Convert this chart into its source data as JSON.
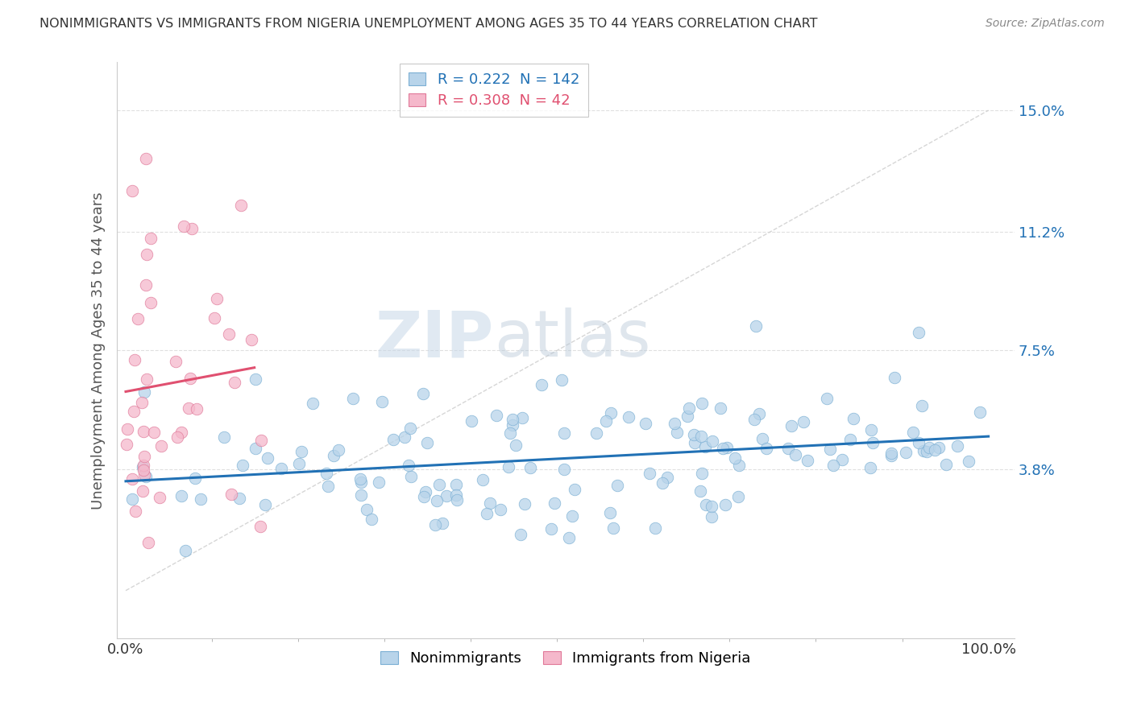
{
  "title": "NONIMMIGRANTS VS IMMIGRANTS FROM NIGERIA UNEMPLOYMENT AMONG AGES 35 TO 44 YEARS CORRELATION CHART",
  "source": "Source: ZipAtlas.com",
  "ylabel": "Unemployment Among Ages 35 to 44 years",
  "yticks": [
    3.8,
    7.5,
    11.2,
    15.0
  ],
  "ytick_labels": [
    "3.8%",
    "7.5%",
    "11.2%",
    "15.0%"
  ],
  "xtick_labels": [
    "0.0%",
    "100.0%"
  ],
  "blue_color": "#b8d4ea",
  "blue_edge_color": "#7bafd4",
  "pink_color": "#f5b8cb",
  "pink_edge_color": "#e07898",
  "blue_line_color": "#2171b5",
  "pink_line_color": "#e05070",
  "ref_line_color": "#cccccc",
  "grid_color": "#dddddd",
  "legend_blue_text_color": "#2171b5",
  "legend_pink_text_color": "#e05070",
  "R_blue": 0.222,
  "N_blue": 142,
  "R_pink": 0.308,
  "N_pink": 42,
  "watermark": "ZIPatlas",
  "title_color": "#333333",
  "source_color": "#888888",
  "ylabel_color": "#555555",
  "ytick_color": "#2171b5",
  "xtick_color": "#333333"
}
